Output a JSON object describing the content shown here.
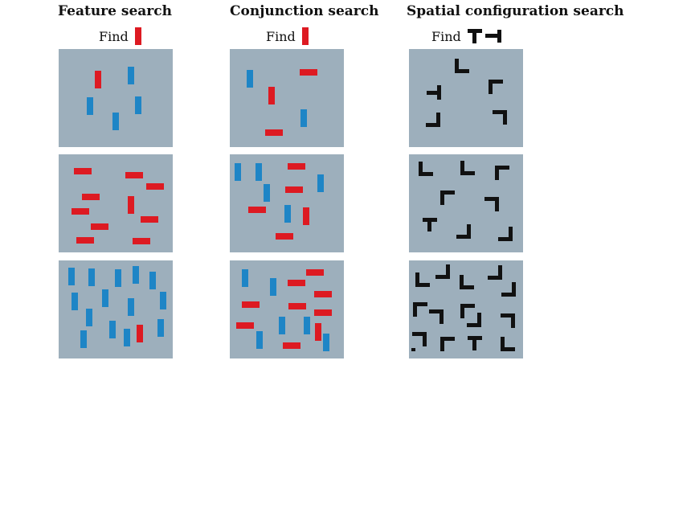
{
  "columns": [
    {
      "title": "Feature search",
      "find_label": "Find"
    },
    {
      "title": "Conjunction search",
      "find_label": "Find"
    },
    {
      "title": "Spatial configuration search",
      "find_label": "Find"
    }
  ],
  "colors": {
    "red": "#dd1a22",
    "blue": "#1e85c6",
    "black": "#111111",
    "panel_bg": "#9dafbc"
  },
  "targets": [
    "red-vertical-bar",
    "red-vertical-bar",
    "T-glyph"
  ],
  "panels": [
    [
      {
        "icons": [
          "red-vertical-bar",
          "blue-vertical-bar",
          "blue-vertical-bar",
          "blue-vertical-bar",
          "blue-vertical-bar"
        ]
      },
      {
        "icons": [
          "red-horizontal-bar",
          "red-horizontal-bar",
          "red-horizontal-bar",
          "red-horizontal-bar",
          "red-horizontal-bar",
          "red-vertical-bar",
          "red-horizontal-bar",
          "red-horizontal-bar",
          "red-horizontal-bar",
          "red-horizontal-bar"
        ]
      },
      {
        "icons": [
          "blue-vertical-bar",
          "blue-vertical-bar",
          "blue-vertical-bar",
          "blue-vertical-bar",
          "blue-vertical-bar",
          "blue-vertical-bar",
          "blue-vertical-bar",
          "blue-vertical-bar",
          "blue-vertical-bar",
          "blue-vertical-bar",
          "blue-vertical-bar",
          "blue-vertical-bar",
          "blue-vertical-bar",
          "red-vertical-bar",
          "blue-vertical-bar"
        ]
      }
    ],
    [
      {
        "icons": [
          "blue-vertical-bar",
          "red-horizontal-bar",
          "red-vertical-bar",
          "blue-vertical-bar",
          "red-horizontal-bar"
        ]
      },
      {
        "icons": [
          "blue-vertical-bar",
          "blue-vertical-bar",
          "red-horizontal-bar",
          "blue-vertical-bar",
          "blue-vertical-bar",
          "red-horizontal-bar",
          "red-horizontal-bar",
          "blue-vertical-bar",
          "red-vertical-bar",
          "red-horizontal-bar"
        ]
      },
      {
        "icons": [
          "red-horizontal-bar",
          "blue-vertical-bar",
          "blue-vertical-bar",
          "red-horizontal-bar",
          "red-horizontal-bar",
          "red-horizontal-bar",
          "red-horizontal-bar",
          "red-horizontal-bar",
          "blue-vertical-bar",
          "blue-vertical-bar",
          "red-horizontal-bar",
          "red-vertical-bar",
          "blue-vertical-bar",
          "blue-vertical-bar",
          "red-horizontal-bar"
        ]
      }
    ],
    [
      {
        "icons": [
          "L-glyph",
          "L-glyph",
          "L-glyph",
          "L-glyph",
          "L-glyph"
        ]
      },
      {
        "icons": [
          "L-glyph",
          "L-glyph",
          "L-glyph",
          "L-glyph",
          "L-glyph",
          "T-glyph",
          "L-glyph",
          "L-glyph"
        ]
      },
      {
        "icons": [
          "L-glyph",
          "L-glyph",
          "L-glyph",
          "L-glyph",
          "L-glyph",
          "L-glyph",
          "L-glyph",
          "L-glyph",
          "L-glyph",
          "L-glyph",
          "L-glyph",
          "L-glyph",
          "L-glyph",
          "T-glyph",
          "L-glyph"
        ]
      }
    ]
  ]
}
